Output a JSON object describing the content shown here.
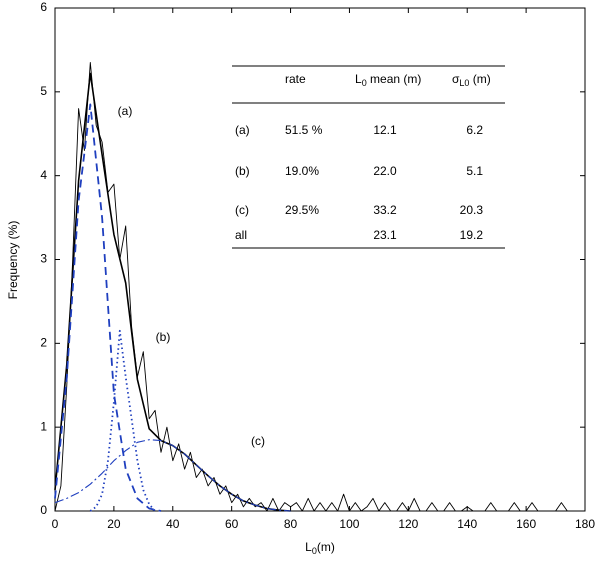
{
  "chart_data": {
    "type": "line",
    "x_label": {
      "text": "L",
      "sub": "0",
      "rest": "(m)"
    },
    "y_label": "Frequency (%)",
    "xlim": [
      0,
      180
    ],
    "xticks": [
      0,
      20,
      40,
      60,
      80,
      100,
      120,
      140,
      160,
      180
    ],
    "ylim": [
      0,
      6
    ],
    "yticks": [
      0,
      1,
      2,
      3,
      4,
      5,
      6
    ],
    "series": [
      {
        "color": "#000000",
        "style": "thin",
        "x": [
          0,
          2,
          4,
          6,
          8,
          10,
          12,
          14,
          16,
          18,
          20,
          22,
          24,
          26,
          28,
          30,
          32,
          34,
          36,
          38,
          40,
          42,
          44,
          46,
          48,
          50,
          52,
          54,
          56,
          58,
          60,
          62,
          64,
          66,
          68,
          70,
          72,
          74,
          76,
          78,
          80,
          82,
          84,
          86,
          88,
          90,
          92,
          94,
          96,
          98,
          100,
          102,
          104,
          106,
          108,
          110,
          112,
          114,
          116,
          118,
          120,
          122,
          124,
          126,
          128,
          130,
          132,
          134,
          136,
          138,
          140,
          142,
          144,
          146,
          148,
          150,
          152,
          154,
          156,
          158,
          160,
          162,
          164,
          166,
          168,
          170,
          172,
          174,
          176
        ],
        "values": [
          0,
          0.3,
          1.5,
          3.0,
          4.8,
          4.3,
          5.35,
          4.6,
          4.4,
          3.8,
          3.9,
          3.0,
          3.4,
          2.2,
          1.6,
          1.9,
          1.1,
          1.2,
          0.7,
          1.0,
          0.6,
          0.8,
          0.5,
          0.7,
          0.4,
          0.5,
          0.3,
          0.4,
          0.2,
          0.3,
          0.1,
          0.2,
          0.05,
          0.15,
          0.05,
          0.1,
          0,
          0.15,
          0,
          0.1,
          0.05,
          0.1,
          0,
          0.15,
          0,
          0.1,
          0,
          0.1,
          0,
          0.2,
          0,
          0.1,
          0,
          0.05,
          0.15,
          0,
          0.1,
          0,
          0,
          0.1,
          0,
          0.15,
          0,
          0,
          0.1,
          0,
          0,
          0.1,
          0,
          0,
          0.05,
          0,
          0,
          0,
          0.1,
          0,
          0,
          0,
          0.1,
          0,
          0,
          0.1,
          0,
          0,
          0,
          0,
          0.1,
          0,
          0
        ]
      },
      {
        "color": "#000000",
        "style": "solid",
        "x": [
          0,
          4,
          8,
          12,
          16,
          20,
          24,
          28,
          32,
          36,
          40,
          44,
          48,
          52,
          56,
          60,
          64,
          68,
          72,
          76,
          80
        ],
        "values": [
          0.25,
          1.75,
          3.94,
          5.22,
          4.25,
          3.3,
          2.72,
          1.57,
          0.98,
          0.84,
          0.78,
          0.68,
          0.55,
          0.42,
          0.3,
          0.2,
          0.12,
          0.07,
          0.03,
          0.01,
          0
        ]
      },
      {
        "color": "#1f3fbf",
        "style": "dashed",
        "x": [
          0,
          4,
          8,
          12,
          16,
          20,
          24,
          28,
          32,
          36
        ],
        "values": [
          0.15,
          1.6,
          3.7,
          4.85,
          3.5,
          1.4,
          0.5,
          0.15,
          0.03,
          0
        ]
      },
      {
        "color": "#1f3fbf",
        "style": "dotted",
        "x": [
          12,
          14,
          16,
          18,
          20,
          22,
          24,
          26,
          28,
          30,
          32,
          34
        ],
        "values": [
          0,
          0.05,
          0.2,
          0.6,
          1.3,
          2.15,
          1.6,
          1.1,
          0.6,
          0.25,
          0.08,
          0
        ]
      },
      {
        "color": "#1f3fbf",
        "style": "dashdot",
        "x": [
          0,
          4,
          8,
          12,
          16,
          20,
          24,
          28,
          32,
          36,
          40,
          44,
          48,
          52,
          56,
          60,
          64,
          68,
          72,
          76,
          80
        ],
        "values": [
          0.1,
          0.15,
          0.22,
          0.32,
          0.45,
          0.6,
          0.72,
          0.82,
          0.85,
          0.84,
          0.78,
          0.68,
          0.55,
          0.42,
          0.3,
          0.2,
          0.12,
          0.07,
          0.03,
          0.01,
          0
        ]
      }
    ],
    "annotations": [
      "(a)",
      "(b)",
      "(c)"
    ],
    "table": {
      "header": [
        {
          "text": "rate"
        },
        {
          "text": "L",
          "sub": "0",
          "rest": " mean (m)"
        },
        {
          "text": "σ",
          "sub": "L0",
          "rest": " (m)"
        }
      ],
      "rows": [
        [
          "(a)",
          "51.5 %",
          "12.1",
          "6.2"
        ],
        [
          "(b)",
          "19.0%",
          "22.0",
          "5.1"
        ],
        [
          "(c)",
          "29.5%",
          "33.2",
          "20.3"
        ],
        [
          "all",
          "",
          "23.1",
          "19.2"
        ]
      ]
    }
  }
}
